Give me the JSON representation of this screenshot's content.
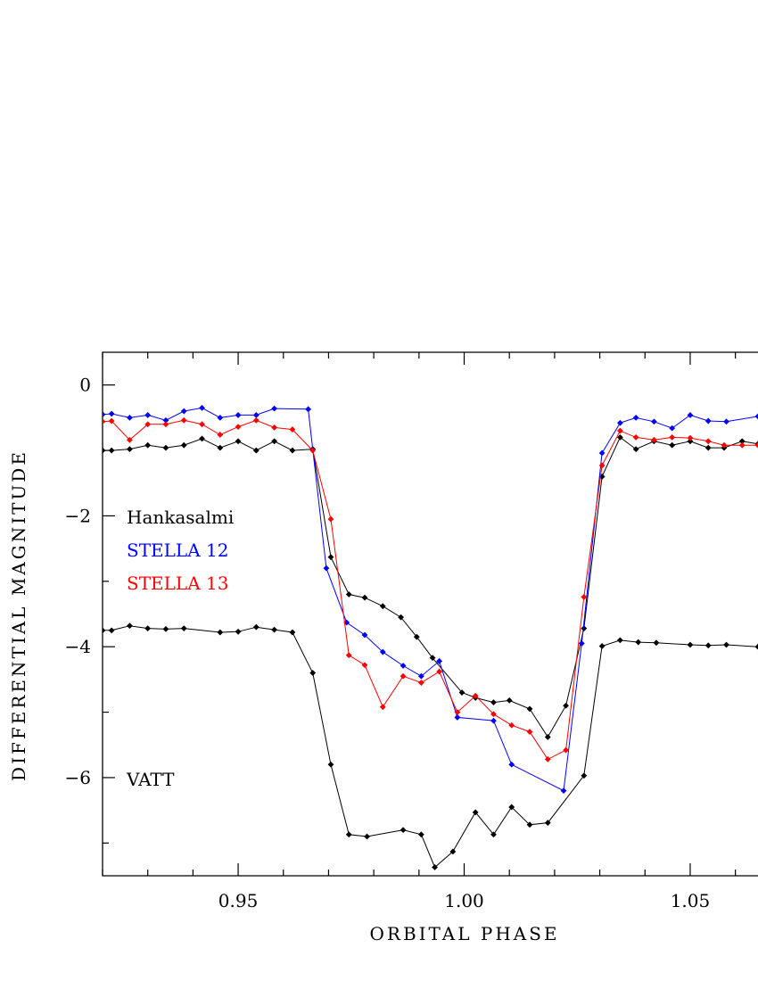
{
  "chart_data": {
    "type": "line",
    "xlabel": "ORBITAL PHASE",
    "ylabel": "DIFFERENTIAL MAGNITUDE",
    "xlim": [
      0.92,
      1.065
    ],
    "ylim": [
      -7.5,
      0.5
    ],
    "y_inverted": true,
    "x_ticks": [
      "0.95",
      "1.00",
      "1.05"
    ],
    "x_tick_values": [
      0.95,
      1.0,
      1.05
    ],
    "y_ticks": [
      "0",
      "−2",
      "−4",
      "−6"
    ],
    "y_tick_values": [
      0,
      -2,
      -4,
      -6
    ],
    "series": [
      {
        "name": "Hankasalmi",
        "color": "#000000",
        "x": [
          0.92,
          0.922,
          0.926,
          0.93,
          0.934,
          0.938,
          0.942,
          0.946,
          0.95,
          0.954,
          0.958,
          0.962,
          0.9665,
          0.9705,
          0.9745,
          0.978,
          0.982,
          0.986,
          0.9895,
          0.993,
          0.9995,
          1.0025,
          1.0065,
          1.01,
          1.0145,
          1.0185,
          1.0225,
          1.0265,
          1.0305,
          1.0345,
          1.038,
          1.042,
          1.046,
          1.05,
          1.054,
          1.0575,
          1.0615,
          1.065
        ],
        "y": [
          -1.0,
          -1.0,
          -0.98,
          -0.92,
          -0.96,
          -0.92,
          -0.82,
          -0.96,
          -0.86,
          -1.0,
          -0.86,
          -1.0,
          -0.98,
          -2.63,
          -3.2,
          -3.25,
          -3.38,
          -3.55,
          -3.85,
          -4.17,
          -4.7,
          -4.78,
          -4.85,
          -4.82,
          -4.95,
          -5.38,
          -4.9,
          -3.72,
          -1.4,
          -0.8,
          -0.98,
          -0.86,
          -0.92,
          -0.86,
          -0.96,
          -0.96,
          -0.86,
          -0.9
        ]
      },
      {
        "name": "STELLA 12",
        "color": "#0000ff",
        "x": [
          0.92,
          0.922,
          0.926,
          0.93,
          0.934,
          0.938,
          0.942,
          0.946,
          0.95,
          0.954,
          0.958,
          0.9655,
          0.9695,
          0.974,
          0.978,
          0.982,
          0.9865,
          0.9905,
          0.9945,
          0.9985,
          1.0065,
          1.0105,
          1.022,
          1.026,
          1.0305,
          1.0345,
          1.038,
          1.042,
          1.046,
          1.05,
          1.054,
          1.058,
          1.065
        ],
        "y": [
          -0.45,
          -0.44,
          -0.5,
          -0.46,
          -0.54,
          -0.4,
          -0.35,
          -0.5,
          -0.46,
          -0.46,
          -0.36,
          -0.37,
          -2.8,
          -3.63,
          -3.82,
          -4.08,
          -4.29,
          -4.45,
          -4.22,
          -5.08,
          -5.13,
          -5.8,
          -6.2,
          -3.95,
          -1.04,
          -0.58,
          -0.5,
          -0.56,
          -0.66,
          -0.46,
          -0.55,
          -0.56,
          -0.48
        ]
      },
      {
        "name": "STELLA 13",
        "color": "#ff0000",
        "x": [
          0.92,
          0.922,
          0.926,
          0.93,
          0.934,
          0.938,
          0.942,
          0.946,
          0.95,
          0.954,
          0.958,
          0.962,
          0.9665,
          0.9705,
          0.9745,
          0.978,
          0.982,
          0.9865,
          0.9905,
          0.9945,
          0.9985,
          1.0025,
          1.0065,
          1.0105,
          1.0145,
          1.0185,
          1.0225,
          1.0265,
          1.0305,
          1.0345,
          1.038,
          1.042,
          1.046,
          1.05,
          1.054,
          1.0575,
          1.0615,
          1.065
        ],
        "y": [
          -0.56,
          -0.55,
          -0.84,
          -0.6,
          -0.6,
          -0.54,
          -0.6,
          -0.76,
          -0.64,
          -0.54,
          -0.65,
          -0.68,
          -1.0,
          -2.05,
          -4.13,
          -4.28,
          -4.92,
          -4.45,
          -4.55,
          -4.38,
          -5.0,
          -4.75,
          -5.03,
          -5.2,
          -5.3,
          -5.72,
          -5.58,
          -3.24,
          -1.23,
          -0.7,
          -0.8,
          -0.84,
          -0.8,
          -0.81,
          -0.86,
          -0.92,
          -0.92,
          -0.92
        ]
      },
      {
        "name": "VATT",
        "color": "#000000",
        "x": [
          0.92,
          0.922,
          0.926,
          0.93,
          0.934,
          0.938,
          0.946,
          0.95,
          0.954,
          0.958,
          0.962,
          0.9665,
          0.9705,
          0.9745,
          0.9785,
          0.9865,
          0.9905,
          0.9935,
          0.9975,
          1.0025,
          1.0065,
          1.0105,
          1.0145,
          1.0185,
          1.0265,
          1.0305,
          1.0345,
          1.0385,
          1.0425,
          1.05,
          1.054,
          1.058,
          1.065
        ],
        "y": [
          -3.75,
          -3.75,
          -3.68,
          -3.72,
          -3.73,
          -3.72,
          -3.78,
          -3.77,
          -3.7,
          -3.74,
          -3.78,
          -4.4,
          -5.8,
          -6.87,
          -6.9,
          -6.8,
          -6.87,
          -7.37,
          -7.13,
          -6.53,
          -6.87,
          -6.45,
          -6.72,
          -6.69,
          -5.97,
          -3.99,
          -3.9,
          -3.93,
          -3.94,
          -3.97,
          -3.98,
          -3.97,
          -4.0
        ]
      }
    ],
    "legend": [
      {
        "label": "Hankasalmi",
        "color": "#000000"
      },
      {
        "label": "STELLA 12",
        "color": "#0000ff"
      },
      {
        "label": "STELLA 13",
        "color": "#ff0000"
      }
    ],
    "annotations": [
      {
        "text": "VATT",
        "color": "#000000"
      }
    ]
  }
}
